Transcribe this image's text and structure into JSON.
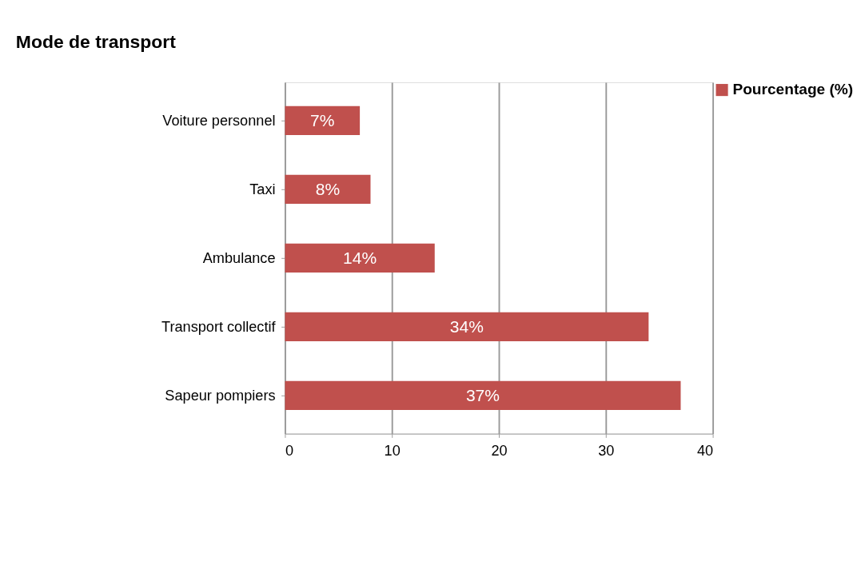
{
  "chart_data": {
    "type": "bar",
    "orientation": "horizontal",
    "title": "Mode de transport",
    "categories": [
      "Voiture personnel",
      "Taxi",
      "Ambulance",
      "Transport collectif",
      "Sapeur pompiers"
    ],
    "series": [
      {
        "name": "Pourcentage (%)",
        "color": "#c0504d",
        "values": [
          7,
          8,
          14,
          34,
          37
        ],
        "value_labels": [
          "7%",
          "8%",
          "14%",
          "34%",
          "37%"
        ]
      }
    ],
    "xlim": [
      0,
      40
    ],
    "xticks": [
      0,
      10,
      20,
      30,
      40
    ],
    "grid": "x",
    "legend": "right"
  }
}
